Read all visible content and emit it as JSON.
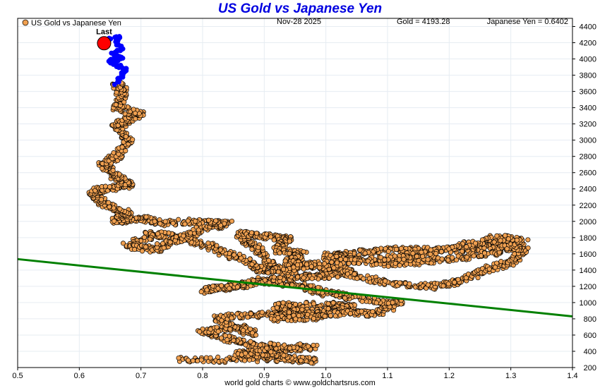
{
  "title": "US Gold vs Japanese Yen",
  "footer": "world gold charts © www.goldchartsrus.com",
  "header": {
    "legend_label": "US Gold vs Japanese Yen",
    "date": "Nov-28  2025",
    "gold_readout": "Gold = 4193.28",
    "yen_readout": "Japanese Yen = 0.6402"
  },
  "colors": {
    "title": "#0000e0",
    "points": "#f0a050",
    "recent": "#0000ff",
    "last": "#ff0000",
    "trend": "#008000",
    "grid": "#e6ecf2"
  },
  "chart_data": {
    "type": "scatter",
    "title": "US Gold vs Japanese Yen",
    "xlabel": "",
    "ylabel": "",
    "xlim": [
      0.5,
      1.4
    ],
    "ylim": [
      200,
      4500
    ],
    "x_ticks": [
      "0.5",
      "0.6",
      "0.7",
      "0.8",
      "0.9",
      "1.0",
      "1.1",
      "1.2",
      "1.3",
      "1.4"
    ],
    "y_ticks": [
      "200",
      "400",
      "600",
      "800",
      "1000",
      "1200",
      "1400",
      "1600",
      "1800",
      "2000",
      "2200",
      "2400",
      "2600",
      "2800",
      "3000",
      "3200",
      "3400",
      "3600",
      "3800",
      "4000",
      "4200",
      "4400"
    ],
    "grid": true,
    "legend": "top-left",
    "series_path": [
      [
        0.76,
        290
      ],
      [
        0.85,
        300
      ],
      [
        0.92,
        310
      ],
      [
        0.98,
        280
      ],
      [
        0.92,
        340
      ],
      [
        0.86,
        380
      ],
      [
        0.92,
        430
      ],
      [
        0.98,
        450
      ],
      [
        0.88,
        470
      ],
      [
        0.84,
        560
      ],
      [
        0.8,
        650
      ],
      [
        0.86,
        700
      ],
      [
        0.88,
        620
      ],
      [
        0.82,
        800
      ],
      [
        0.86,
        840
      ],
      [
        0.92,
        860
      ],
      [
        0.96,
        900
      ],
      [
        0.92,
        960
      ],
      [
        1.0,
        980
      ],
      [
        1.04,
        950
      ],
      [
        1.0,
        900
      ],
      [
        0.94,
        880
      ],
      [
        0.92,
        800
      ],
      [
        0.98,
        820
      ],
      [
        1.04,
        880
      ],
      [
        1.08,
        860
      ],
      [
        1.12,
        1000
      ],
      [
        1.05,
        1050
      ],
      [
        1.0,
        1120
      ],
      [
        0.96,
        1200
      ],
      [
        0.9,
        1280
      ],
      [
        0.84,
        1180
      ],
      [
        0.8,
        1150
      ],
      [
        0.88,
        1240
      ],
      [
        0.94,
        1300
      ],
      [
        1.0,
        1350
      ],
      [
        1.04,
        1380
      ],
      [
        0.98,
        1300
      ],
      [
        0.92,
        1400
      ],
      [
        0.9,
        1560
      ],
      [
        0.88,
        1720
      ],
      [
        0.86,
        1850
      ],
      [
        0.9,
        1820
      ],
      [
        0.94,
        1780
      ],
      [
        0.92,
        1650
      ],
      [
        0.96,
        1600
      ],
      [
        0.94,
        1500
      ],
      [
        0.98,
        1450
      ],
      [
        1.02,
        1420
      ],
      [
        1.06,
        1300
      ],
      [
        1.12,
        1220
      ],
      [
        1.18,
        1200
      ],
      [
        1.22,
        1280
      ],
      [
        1.26,
        1400
      ],
      [
        1.3,
        1500
      ],
      [
        1.32,
        1650
      ],
      [
        1.28,
        1720
      ],
      [
        1.24,
        1660
      ],
      [
        1.18,
        1640
      ],
      [
        1.12,
        1660
      ],
      [
        1.06,
        1620
      ],
      [
        1.0,
        1580
      ],
      [
        1.04,
        1520
      ],
      [
        1.1,
        1480
      ],
      [
        1.16,
        1500
      ],
      [
        1.22,
        1560
      ],
      [
        1.28,
        1620
      ],
      [
        1.32,
        1760
      ],
      [
        1.28,
        1800
      ],
      [
        1.22,
        1700
      ],
      [
        1.16,
        1600
      ],
      [
        1.1,
        1550
      ],
      [
        1.0,
        1480
      ],
      [
        0.94,
        1420
      ],
      [
        0.9,
        1380
      ],
      [
        0.88,
        1480
      ],
      [
        0.84,
        1600
      ],
      [
        0.8,
        1720
      ],
      [
        0.76,
        1800
      ],
      [
        0.72,
        1850
      ],
      [
        0.68,
        1700
      ],
      [
        0.72,
        1650
      ],
      [
        0.76,
        1760
      ],
      [
        0.8,
        1920
      ],
      [
        0.84,
        1970
      ],
      [
        0.8,
        2000
      ],
      [
        0.74,
        1980
      ],
      [
        0.7,
        2040
      ],
      [
        0.66,
        2000
      ],
      [
        0.68,
        2100
      ],
      [
        0.64,
        2220
      ],
      [
        0.62,
        2360
      ],
      [
        0.64,
        2400
      ],
      [
        0.68,
        2450
      ],
      [
        0.66,
        2560
      ],
      [
        0.64,
        2700
      ],
      [
        0.66,
        2800
      ],
      [
        0.68,
        3000
      ],
      [
        0.66,
        3160
      ],
      [
        0.68,
        3260
      ],
      [
        0.7,
        3320
      ],
      [
        0.66,
        3400
      ],
      [
        0.67,
        3600
      ],
      [
        0.66,
        3700
      ]
    ],
    "recent_path": [
      [
        0.66,
        3700
      ],
      [
        0.67,
        3800
      ],
      [
        0.675,
        3880
      ],
      [
        0.66,
        3920
      ],
      [
        0.65,
        3980
      ],
      [
        0.67,
        4000
      ],
      [
        0.655,
        4060
      ],
      [
        0.67,
        4120
      ],
      [
        0.66,
        4200
      ],
      [
        0.665,
        4280
      ],
      [
        0.645,
        4230
      ],
      [
        0.64,
        4193.28
      ]
    ],
    "last_point": {
      "x": 0.6402,
      "y": 4193.28,
      "label": "Last"
    },
    "trendline": {
      "x": [
        0.5,
        1.4
      ],
      "y": [
        1535,
        830
      ]
    }
  }
}
